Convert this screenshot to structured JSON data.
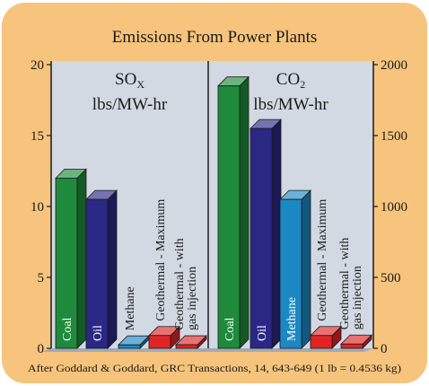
{
  "chart_data": {
    "type": "bar",
    "title": "Emissions From Power Plants",
    "source": "After Goddard & Goddard, GRC Transactions, 14, 643-649 (1 lb = 0.4536 kg)",
    "panels": [
      {
        "pollutant_main": "SO",
        "pollutant_sub": "X",
        "unit": "lbs/MW-hr",
        "axis_side": "left",
        "ylim": [
          0,
          20
        ],
        "yticks": [
          0,
          5,
          10,
          15,
          20
        ],
        "tick_labels": [
          "0",
          "5",
          "10",
          "15",
          "20"
        ],
        "categories": [
          {
            "label": "Coal",
            "lines": [
              "Coal"
            ],
            "value": 12,
            "color": "#1f8a3b"
          },
          {
            "label": "Oil",
            "lines": [
              "Oil"
            ],
            "value": 10.5,
            "color": "#2b2785"
          },
          {
            "label": "Methane",
            "lines": [
              "Methane"
            ],
            "value": 0.15,
            "color": "#1b88c4"
          },
          {
            "label": "Geothermal - Maximum",
            "lines": [
              "Geothermal - Maximum"
            ],
            "value": 0.9,
            "color": "#e02424"
          },
          {
            "label": "Geothermal - with gas injection",
            "lines": [
              "Geothermal - with",
              "gas injection"
            ],
            "value": 0.25,
            "color": "#e02424"
          }
        ]
      },
      {
        "pollutant_main": "CO",
        "pollutant_sub": "2",
        "unit": "lbs/MW-hr",
        "axis_side": "right",
        "ylim": [
          0,
          2000
        ],
        "yticks": [
          0,
          500,
          1000,
          1500,
          2000
        ],
        "tick_labels": [
          "0",
          "500",
          "1000",
          "1500",
          "2000"
        ],
        "categories": [
          {
            "label": "Coal",
            "lines": [
              "Coal"
            ],
            "value": 1850,
            "color": "#1f8a3b"
          },
          {
            "label": "Oil",
            "lines": [
              "Oil"
            ],
            "value": 1550,
            "color": "#2b2785"
          },
          {
            "label": "Methane",
            "lines": [
              "Methane"
            ],
            "value": 1050,
            "color": "#1b88c4"
          },
          {
            "label": "Geothermal - Maximum",
            "lines": [
              "Geothermal - Maximum"
            ],
            "value": 90,
            "color": "#e02424"
          },
          {
            "label": "Geothermal - with gas injection",
            "lines": [
              "Geothermal - with",
              "gas injection"
            ],
            "value": 30,
            "color": "#e02424"
          }
        ]
      }
    ],
    "colors": {
      "frame": "#f6c47c",
      "plot_bg": "#d3d9e3",
      "floor": "#a3aab5"
    }
  }
}
